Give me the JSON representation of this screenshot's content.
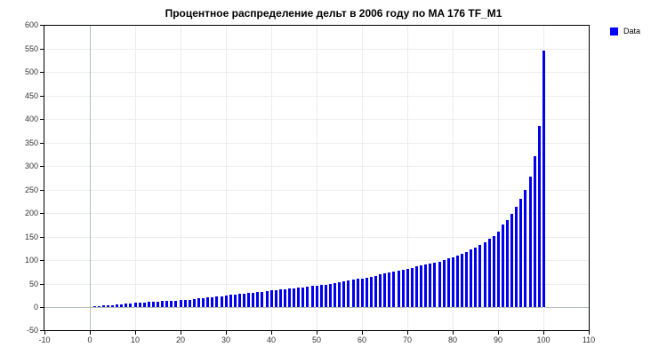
{
  "title": "Процентное распределение дельт в 2006 году по MA 176 TF_M1",
  "legend": {
    "label": "Data",
    "color": "#0000ff"
  },
  "colors": {
    "bar": "#0000ee",
    "grid_minor": "#ededed",
    "grid_zero": "#b4bebe",
    "axis": "#000000",
    "tick_label": "#333333",
    "background": "#ffffff"
  },
  "chart_data": {
    "type": "bar",
    "title": "Процентное распределение дельт в 2006 году по MA 176 TF_M1",
    "xlabel": "",
    "ylabel": "",
    "xlim": [
      -10,
      110
    ],
    "ylim": [
      -50,
      600
    ],
    "x_ticks": [
      -10,
      0,
      10,
      20,
      30,
      40,
      50,
      60,
      70,
      80,
      90,
      100,
      110
    ],
    "y_ticks": [
      -50,
      0,
      50,
      100,
      150,
      200,
      250,
      300,
      350,
      400,
      450,
      500,
      550,
      600
    ],
    "grid": true,
    "legend_position": "outside-top-right",
    "series": [
      {
        "name": "Data",
        "color": "#0000ee",
        "x": [
          1,
          2,
          3,
          4,
          5,
          6,
          7,
          8,
          9,
          10,
          11,
          12,
          13,
          14,
          15,
          16,
          17,
          18,
          19,
          20,
          21,
          22,
          23,
          24,
          25,
          26,
          27,
          28,
          29,
          30,
          31,
          32,
          33,
          34,
          35,
          36,
          37,
          38,
          39,
          40,
          41,
          42,
          43,
          44,
          45,
          46,
          47,
          48,
          49,
          50,
          51,
          52,
          53,
          54,
          55,
          56,
          57,
          58,
          59,
          60,
          61,
          62,
          63,
          64,
          65,
          66,
          67,
          68,
          69,
          70,
          71,
          72,
          73,
          74,
          75,
          76,
          77,
          78,
          79,
          80,
          81,
          82,
          83,
          84,
          85,
          86,
          87,
          88,
          89,
          90,
          91,
          92,
          93,
          94,
          95,
          96,
          97,
          98,
          99,
          100
        ],
        "values": [
          2,
          2,
          3,
          3,
          4,
          5,
          6,
          7,
          8,
          9,
          10,
          10,
          11,
          12,
          12,
          13,
          13,
          14,
          14,
          15,
          16,
          16,
          17,
          18,
          19,
          20,
          21,
          22,
          23,
          25,
          26,
          27,
          28,
          29,
          30,
          31,
          32,
          33,
          34,
          35,
          36,
          37,
          38,
          39,
          40,
          41,
          42,
          44,
          45,
          46,
          47,
          48,
          50,
          51,
          53,
          54,
          56,
          58,
          60,
          61,
          63,
          65,
          67,
          70,
          72,
          74,
          76,
          78,
          80,
          82,
          84,
          86,
          88,
          90,
          92,
          95,
          97,
          100,
          103,
          106,
          110,
          114,
          118,
          122,
          127,
          132,
          138,
          145,
          152,
          160,
          176,
          186,
          198,
          213,
          230,
          250,
          278,
          322,
          385,
          545
        ]
      }
    ]
  }
}
